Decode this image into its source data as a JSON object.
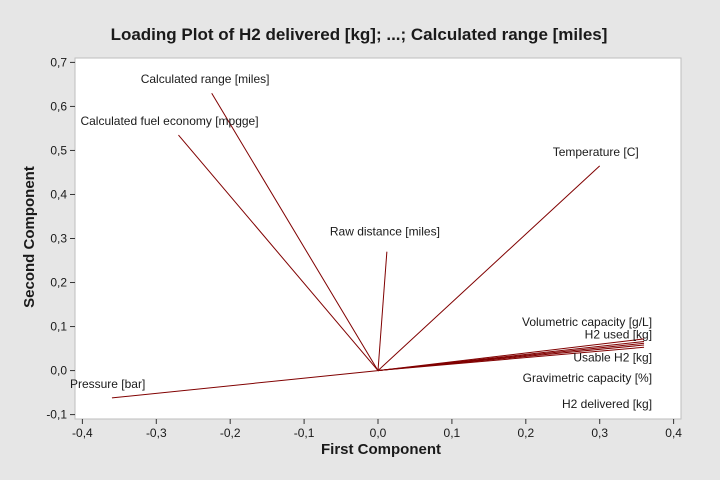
{
  "chart_data": {
    "type": "scatter",
    "title": "Loading Plot of H2 delivered [kg]; ...; Calculated range [miles]",
    "xlabel": "First Component",
    "ylabel": "Second Component",
    "xlim": [
      -0.41,
      0.41
    ],
    "ylim": [
      -0.11,
      0.71
    ],
    "x_ticks": [
      "-0,4",
      "-0,3",
      "-0,2",
      "-0,1",
      "0,0",
      "0,1",
      "0,2",
      "0,3",
      "0,4"
    ],
    "y_ticks": [
      "-0,1",
      "0,0",
      "0,1",
      "0,2",
      "0,3",
      "0,4",
      "0,5",
      "0,6",
      "0,7"
    ],
    "grid": false,
    "line_color": "#800000",
    "plot_background": "#ffffff",
    "page_background": "#e6e6e6",
    "vectors": [
      {
        "label": "Calculated range [miles]",
        "x": -0.225,
        "y": 0.63
      },
      {
        "label": "Calculated fuel economy [mpgge]",
        "x": -0.27,
        "y": 0.535
      },
      {
        "label": "Temperature [C]",
        "x": 0.3,
        "y": 0.465
      },
      {
        "label": "Raw distance [miles]",
        "x": 0.012,
        "y": 0.27
      },
      {
        "label": "Volumetric capacity [g/L]",
        "x": 0.36,
        "y": 0.072
      },
      {
        "label": "H2 used [kg]",
        "x": 0.36,
        "y": 0.066
      },
      {
        "label": "Usable H2 [kg]",
        "x": 0.36,
        "y": 0.062
      },
      {
        "label": "Gravimetric capacity [%]",
        "x": 0.36,
        "y": 0.058
      },
      {
        "label": "H2 delivered [kg]",
        "x": 0.36,
        "y": 0.053
      },
      {
        "label": "Pressure [bar]",
        "x": -0.36,
        "y": -0.062
      }
    ]
  }
}
